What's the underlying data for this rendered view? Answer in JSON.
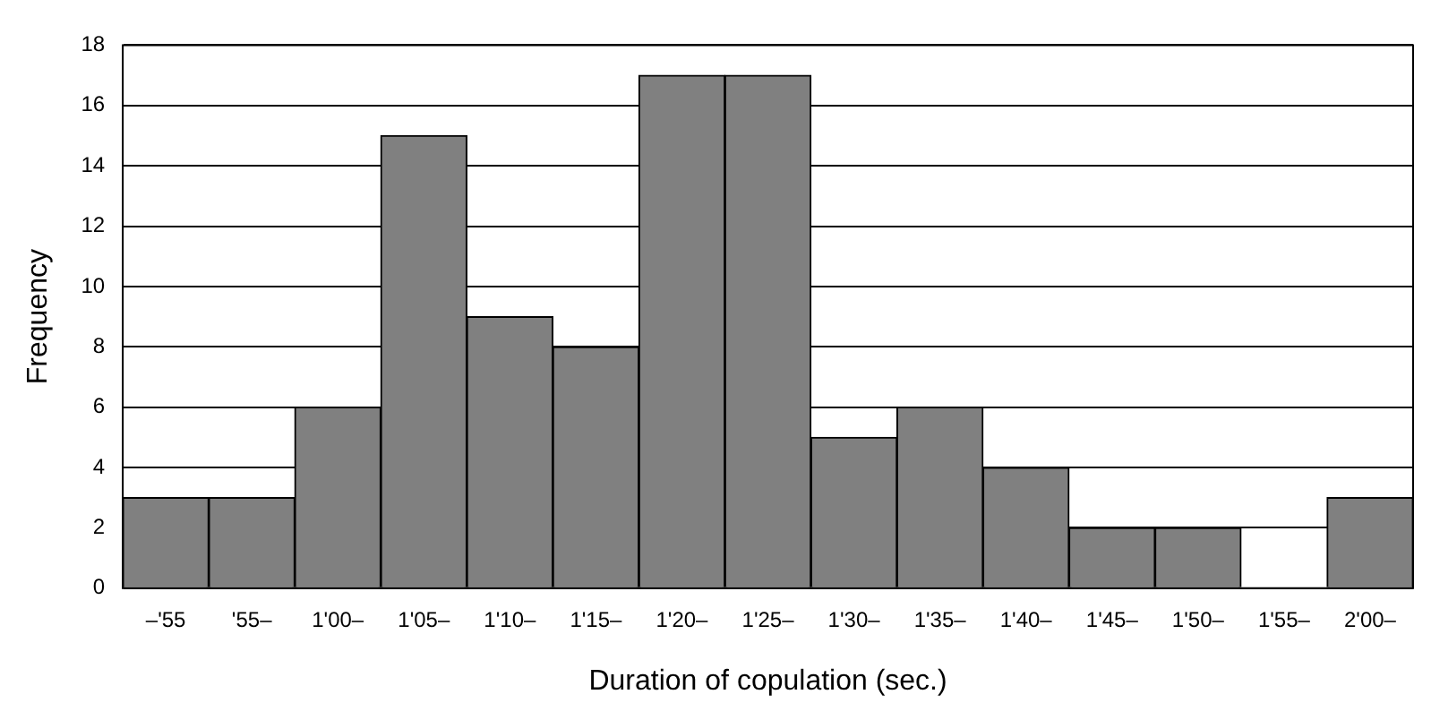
{
  "chart_data": {
    "type": "bar",
    "xlabel": "Duration of copulation (sec.)",
    "ylabel": "Frequency",
    "categories": [
      "–'55",
      "'55–",
      "1'00–",
      "1'05–",
      "1'10–",
      "1'15–",
      "1'20–",
      "1'25–",
      "1'30–",
      "1'35–",
      "1'40–",
      "1'45–",
      "1'50–",
      "1'55–",
      "2'00–"
    ],
    "values": [
      3,
      3,
      6,
      15,
      9,
      8,
      17,
      17,
      5,
      6,
      4,
      2,
      2,
      0,
      3
    ],
    "color": "#808080",
    "ylim": [
      0,
      18
    ],
    "yticks": [
      0,
      2,
      4,
      6,
      8,
      10,
      12,
      14,
      16,
      18
    ],
    "grid": "y",
    "legend": false
  }
}
